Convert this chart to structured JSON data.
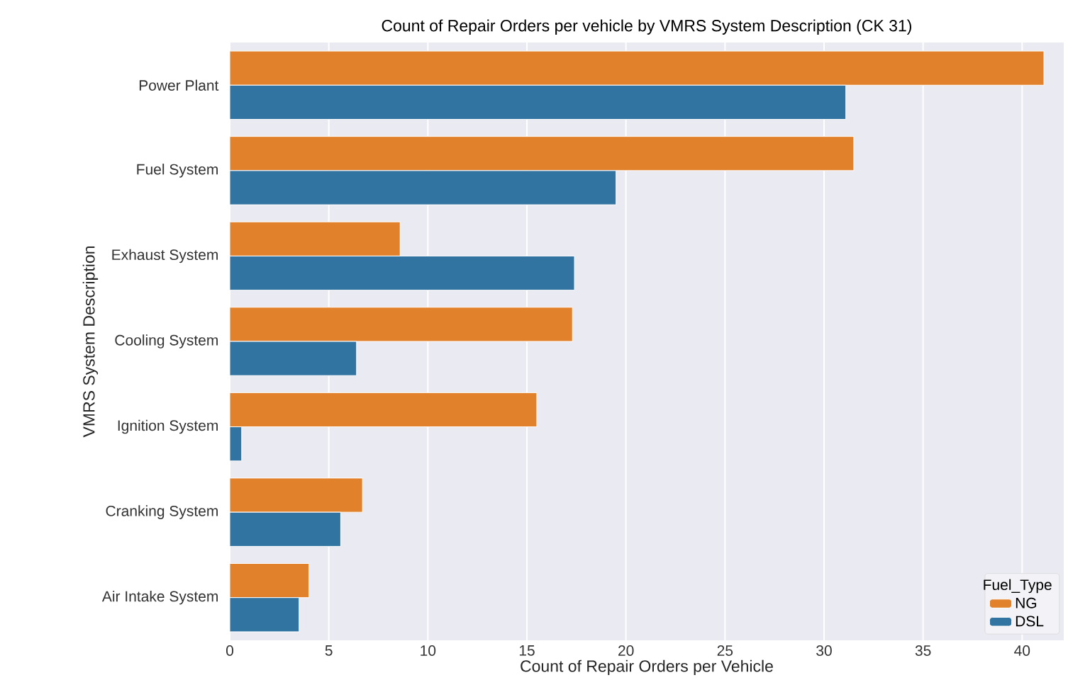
{
  "chart_data": {
    "type": "bar",
    "orientation": "horizontal",
    "title": "Count of Repair Orders per vehicle by VMRS System Description (CK 31)",
    "xlabel": "Count of Repair Orders per Vehicle",
    "ylabel": "VMRS System Description",
    "legend_title": "Fuel_Type",
    "categories": [
      "Power Plant",
      "Fuel System",
      "Exhaust System",
      "Cooling System",
      "Ignition System",
      "Cranking System",
      "Air Intake System"
    ],
    "series": [
      {
        "name": "NG",
        "color": "#e1812c",
        "values": [
          41.1,
          31.5,
          8.6,
          17.3,
          15.5,
          6.7,
          4.0
        ]
      },
      {
        "name": "DSL",
        "color": "#3274a1",
        "values": [
          31.1,
          19.5,
          17.4,
          6.4,
          0.6,
          5.6,
          3.5
        ]
      }
    ],
    "xlim": [
      0,
      42.1
    ],
    "xticks": [
      0,
      5,
      10,
      15,
      20,
      25,
      30,
      35,
      40
    ],
    "grid": true,
    "legend": "bottom right"
  }
}
